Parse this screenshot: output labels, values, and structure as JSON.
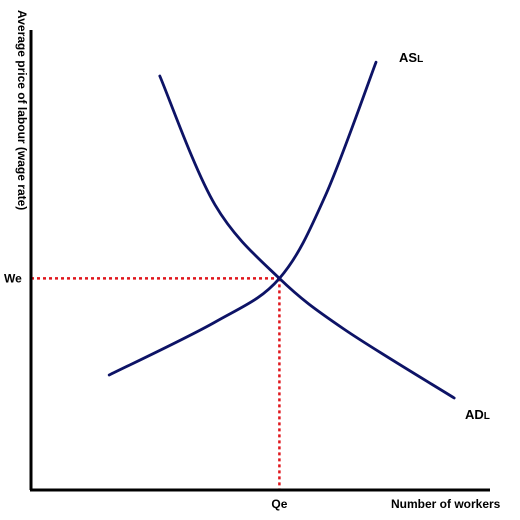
{
  "chart_data": {
    "type": "line",
    "title": "",
    "xlabel": "Number of workers",
    "ylabel": "Average price of labour (wage rate)",
    "xlim": [
      0,
      10
    ],
    "ylim": [
      0,
      10
    ],
    "grid": false,
    "series": [
      {
        "name": "ASL",
        "label_main": "AS",
        "label_sub": "L",
        "color": "#0d1366",
        "points": [
          [
            1.7,
            2.5
          ],
          [
            4.0,
            3.65
          ],
          [
            5.4,
            4.6
          ],
          [
            6.4,
            6.4
          ],
          [
            7.5,
            9.3
          ]
        ]
      },
      {
        "name": "ADL",
        "label_main": "AD",
        "label_sub": "L",
        "color": "#0d1366",
        "points": [
          [
            2.8,
            9.0
          ],
          [
            4.0,
            6.2
          ],
          [
            5.4,
            4.6
          ],
          [
            6.8,
            3.5
          ],
          [
            9.2,
            2.0
          ]
        ]
      }
    ],
    "equilibrium": {
      "x": 5.4,
      "y": 4.6,
      "x_label": "Qe",
      "y_label": "We",
      "line_color": "#e0161c"
    }
  }
}
